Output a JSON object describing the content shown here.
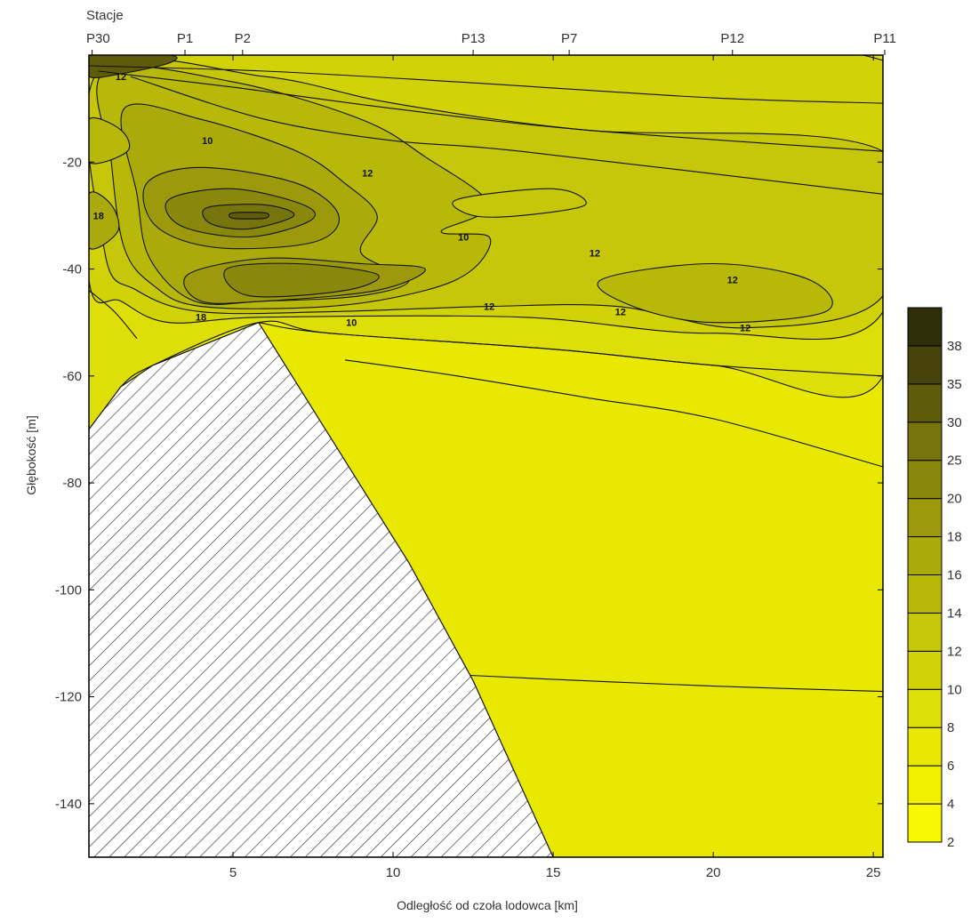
{
  "chart_data": {
    "type": "contour",
    "stations_title": "Stacje",
    "stations": [
      {
        "name": "P30",
        "x": 0.6
      },
      {
        "name": "P1",
        "x": 3.5
      },
      {
        "name": "P2",
        "x": 5.3
      },
      {
        "name": "P13",
        "x": 12.5
      },
      {
        "name": "P7",
        "x": 15.5
      },
      {
        "name": "P12",
        "x": 20.6
      },
      {
        "name": "P11",
        "x": 25.6
      }
    ],
    "xlabel": "Odległość od czoła lodowca [km]",
    "ylabel": "Głębokość [m]",
    "xlim": [
      0.5,
      25.3
    ],
    "ylim": [
      -150,
      0
    ],
    "x_ticks": [
      5,
      10,
      15,
      20,
      25
    ],
    "y_ticks": [
      -20,
      -40,
      -60,
      -80,
      -100,
      -120,
      -140
    ],
    "colorbar": {
      "levels": [
        2,
        4,
        6,
        8,
        10,
        12,
        14,
        16,
        18,
        20,
        25,
        30,
        35,
        38
      ],
      "colors": [
        "#f8f800",
        "#f0f000",
        "#e8e800",
        "#dede08",
        "#d2d208",
        "#c6c60a",
        "#b8b80a",
        "#aaaa0c",
        "#9c9a0c",
        "#8a880c",
        "#76740c",
        "#5e5c0a",
        "#46440a",
        "#302e08"
      ]
    },
    "contour_labels": [
      {
        "text": "12",
        "x": 1.5,
        "y": -4
      },
      {
        "text": "10",
        "x": 4.2,
        "y": -16
      },
      {
        "text": "12",
        "x": 9.2,
        "y": -22
      },
      {
        "text": "18",
        "x": 0.8,
        "y": -30
      },
      {
        "text": "10",
        "x": 12.2,
        "y": -34
      },
      {
        "text": "12",
        "x": 16.3,
        "y": -37
      },
      {
        "text": "12",
        "x": 20.6,
        "y": -42
      },
      {
        "text": "12",
        "x": 13.0,
        "y": -47
      },
      {
        "text": "12",
        "x": 17.1,
        "y": -48
      },
      {
        "text": "12",
        "x": 21.0,
        "y": -51
      },
      {
        "text": "10",
        "x": 8.7,
        "y": -50
      },
      {
        "text": "18",
        "x": 4.0,
        "y": -49
      }
    ],
    "bottom_boundary": [
      [
        0.5,
        -70
      ],
      [
        1.5,
        -62
      ],
      [
        2.5,
        -58
      ],
      [
        5.8,
        -50
      ],
      [
        10.5,
        -95
      ],
      [
        12.5,
        -117
      ],
      [
        15.0,
        -150
      ]
    ],
    "region_fills": [
      {
        "level": 8,
        "points": [
          [
            0.5,
            0
          ],
          [
            25.3,
            0
          ],
          [
            25.3,
            -60
          ],
          [
            20,
            -58
          ],
          [
            15,
            -55
          ],
          [
            8,
            -52
          ],
          [
            5.8,
            -50
          ],
          [
            2.5,
            -58
          ],
          [
            1.5,
            -62
          ],
          [
            0.5,
            -70
          ]
        ]
      },
      {
        "level": 10,
        "points": [
          [
            0.5,
            -1
          ],
          [
            25.3,
            -1
          ],
          [
            25.3,
            -48
          ],
          [
            20,
            -52
          ],
          [
            14,
            -49
          ],
          [
            6,
            -49
          ],
          [
            3,
            -50
          ],
          [
            1.5,
            -46
          ],
          [
            0.5,
            -42
          ]
        ]
      },
      {
        "level": 12,
        "points": [
          [
            0.8,
            -3
          ],
          [
            6,
            -4
          ],
          [
            10,
            -9
          ],
          [
            16,
            -14
          ],
          [
            25.3,
            -18
          ],
          [
            25.3,
            -45
          ],
          [
            21,
            -51
          ],
          [
            17,
            -47
          ],
          [
            13,
            -47
          ],
          [
            8,
            -48
          ],
          [
            4,
            -48
          ],
          [
            2,
            -44
          ],
          [
            1,
            -37
          ]
        ]
      },
      {
        "level": 14,
        "points": [
          [
            1.0,
            -3
          ],
          [
            5,
            -5
          ],
          [
            9,
            -12
          ],
          [
            11,
            -19
          ],
          [
            13,
            -28
          ],
          [
            11.5,
            -33
          ],
          [
            13,
            -34
          ],
          [
            12.5,
            -40
          ],
          [
            11,
            -44
          ],
          [
            8,
            -47
          ],
          [
            4,
            -47
          ],
          [
            2.5,
            -43
          ],
          [
            1.6,
            -36
          ],
          [
            1.2,
            -20
          ]
        ]
      },
      {
        "level": 16,
        "points": [
          [
            1.6,
            -10
          ],
          [
            4,
            -12
          ],
          [
            7,
            -18
          ],
          [
            8.5,
            -24
          ],
          [
            9.5,
            -30
          ],
          [
            9,
            -37
          ],
          [
            10.5,
            -42
          ],
          [
            9,
            -45
          ],
          [
            6,
            -46
          ],
          [
            3.8,
            -46
          ],
          [
            2.4,
            -38
          ],
          [
            2,
            -26
          ]
        ]
      },
      {
        "level": 18,
        "points": [
          [
            2.3,
            -24
          ],
          [
            4,
            -21
          ],
          [
            7,
            -24
          ],
          [
            8.3,
            -30
          ],
          [
            7.5,
            -35
          ],
          [
            4.5,
            -36
          ],
          [
            2.6,
            -32
          ]
        ]
      },
      {
        "level": 18,
        "points": [
          [
            3.6,
            -41
          ],
          [
            6,
            -38
          ],
          [
            9,
            -39
          ],
          [
            11,
            -40
          ],
          [
            9.5,
            -44
          ],
          [
            6,
            -46
          ],
          [
            4,
            -46
          ]
        ]
      },
      {
        "level": 20,
        "points": [
          [
            3.0,
            -27
          ],
          [
            5,
            -25
          ],
          [
            7.2,
            -28
          ],
          [
            7.4,
            -31
          ],
          [
            5.5,
            -34
          ],
          [
            3.4,
            -32
          ]
        ]
      },
      {
        "level": 20,
        "points": [
          [
            4.8,
            -40
          ],
          [
            7,
            -39
          ],
          [
            9.5,
            -41
          ],
          [
            8.5,
            -44
          ],
          [
            5.5,
            -45
          ]
        ]
      },
      {
        "level": 25,
        "points": [
          [
            4.2,
            -28.5
          ],
          [
            6,
            -28
          ],
          [
            6.9,
            -30
          ],
          [
            5.5,
            -32.5
          ],
          [
            4.3,
            -31.5
          ]
        ]
      },
      {
        "level": 30,
        "points": [
          [
            5,
            -29.5
          ],
          [
            6,
            -29.5
          ],
          [
            6,
            -30.5
          ],
          [
            5,
            -30.5
          ]
        ]
      },
      {
        "level": 14,
        "points": [
          [
            0.5,
            -12
          ],
          [
            1.5,
            -14
          ],
          [
            1.7,
            -18
          ],
          [
            0.5,
            -20
          ]
        ]
      },
      {
        "level": 16,
        "points": [
          [
            0.5,
            -26
          ],
          [
            1.2,
            -28
          ],
          [
            1.4,
            -33
          ],
          [
            0.5,
            -36
          ]
        ]
      },
      {
        "level": 14,
        "points": [
          [
            16.5,
            -42
          ],
          [
            20,
            -39
          ],
          [
            23,
            -42
          ],
          [
            23.5,
            -48
          ],
          [
            20,
            -50
          ],
          [
            17.5,
            -47
          ]
        ]
      },
      {
        "level": 12,
        "points": [
          [
            12.0,
            -27
          ],
          [
            15,
            -25
          ],
          [
            16,
            -28
          ],
          [
            14,
            -30
          ],
          [
            12.5,
            -30
          ]
        ]
      },
      {
        "level": 30,
        "points": [
          [
            0.5,
            0
          ],
          [
            3,
            0
          ],
          [
            3,
            -1.5
          ],
          [
            1.5,
            -3.5
          ],
          [
            0.5,
            -4
          ]
        ]
      }
    ],
    "contour_lines": [
      [
        [
          0.5,
          -44
        ],
        [
          1.3,
          -48
        ],
        [
          2.0,
          -53
        ]
      ],
      [
        [
          5.8,
          -50
        ],
        [
          8,
          -52
        ],
        [
          15,
          -55
        ],
        [
          20,
          -58
        ],
        [
          25.3,
          -60
        ]
      ],
      [
        [
          8.5,
          -57
        ],
        [
          12,
          -60
        ],
        [
          16,
          -64
        ],
        [
          20,
          -68
        ],
        [
          25.3,
          -77
        ]
      ],
      [
        [
          12.4,
          -116
        ],
        [
          16,
          -117
        ],
        [
          20,
          -118
        ],
        [
          25.3,
          -119
        ]
      ],
      [
        [
          0.5,
          -2
        ],
        [
          6,
          -3
        ],
        [
          12,
          -5
        ],
        [
          20,
          -8
        ],
        [
          25.3,
          -9
        ]
      ],
      [
        [
          0.8,
          -3
        ],
        [
          5,
          -6
        ],
        [
          10,
          -10
        ],
        [
          16,
          -14
        ],
        [
          25.3,
          -18
        ]
      ],
      [
        [
          1.8,
          -4
        ],
        [
          6,
          -12
        ],
        [
          10,
          -16
        ],
        [
          14,
          -18
        ],
        [
          25.3,
          -26
        ]
      ]
    ]
  }
}
